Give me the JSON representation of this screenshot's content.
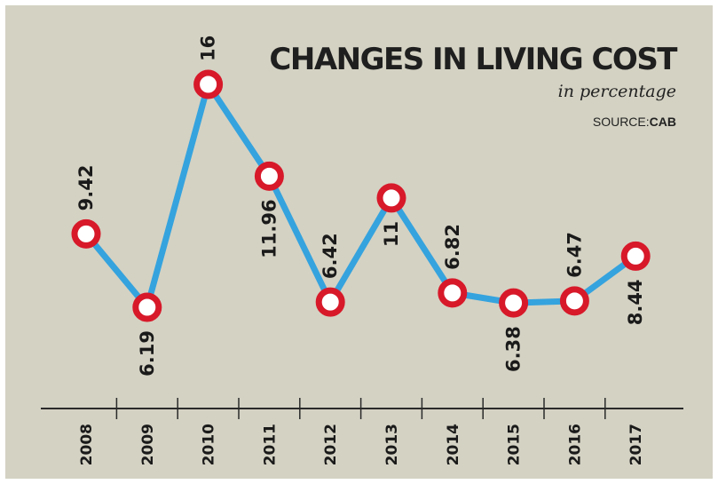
{
  "chart_data": {
    "type": "line",
    "title": "CHANGES IN LIVING COST",
    "subtitle": "in percentage",
    "source_label": "SOURCE:",
    "source_name": "CAB",
    "categories": [
      "2008",
      "2009",
      "2010",
      "2011",
      "2012",
      "2013",
      "2014",
      "2015",
      "2016",
      "2017"
    ],
    "values": [
      9.42,
      6.19,
      16,
      11.96,
      6.42,
      11,
      6.82,
      6.38,
      6.47,
      8.44
    ],
    "value_labels": [
      "9.42",
      "6.19",
      "16",
      "11.96",
      "6.42",
      "11",
      "6.82",
      "6.38",
      "6.47",
      "8.44"
    ],
    "label_position": [
      "above",
      "below",
      "above",
      "below",
      "above",
      "below",
      "above",
      "below",
      "above",
      "below"
    ],
    "xlabel": "",
    "ylabel": "",
    "grid": false,
    "colors": {
      "background": "#d4d2c3",
      "line": "#35a3de",
      "marker_ring": "#d7192a",
      "marker_fill": "#ffffff",
      "axis": "#2a2a2a"
    }
  }
}
